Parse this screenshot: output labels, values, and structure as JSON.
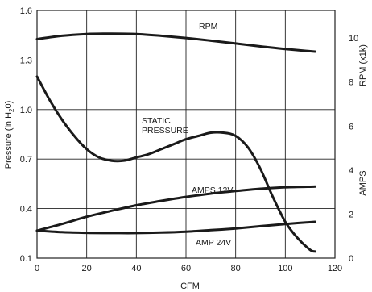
{
  "chart_data": {
    "type": "line",
    "title": "",
    "xlabel": "CFM",
    "ylabel": "Pressure (in H2O)",
    "ylabel_parts": {
      "before": "Pressure (in H",
      "sub": "2",
      "after": "0)"
    },
    "y2label_rpm": "RPM (x1k)",
    "y2label_amps": "AMPS",
    "xlim": [
      0,
      120
    ],
    "ylim": [
      0.1,
      1.6
    ],
    "x_ticks": [
      0,
      20,
      40,
      60,
      80,
      100,
      120
    ],
    "y_ticks": [
      0.1,
      0.4,
      0.7,
      1.0,
      1.3,
      1.6
    ],
    "y_tick_labels": [
      "0.1",
      "0.4",
      "0.7",
      "1.0",
      "1.3",
      "1.6"
    ],
    "y2_ticks": [
      0,
      2,
      4,
      6,
      8,
      10
    ],
    "y2lim": [
      0,
      11.25
    ],
    "grid": true,
    "series": [
      {
        "name": "RPM",
        "axis": "rpm",
        "x": [
          0,
          10,
          20,
          30,
          40,
          50,
          60,
          70,
          80,
          90,
          100,
          112
        ],
        "y": [
          9.95,
          10.1,
          10.18,
          10.2,
          10.18,
          10.1,
          10.0,
          9.88,
          9.75,
          9.62,
          9.5,
          9.38
        ]
      },
      {
        "name": "STATIC PRESSURE",
        "axis": "pressure",
        "x": [
          0,
          5,
          10,
          15,
          20,
          25,
          30,
          35,
          40,
          45,
          50,
          55,
          60,
          65,
          70,
          75,
          80,
          85,
          90,
          95,
          100,
          105,
          110,
          112
        ],
        "y": [
          1.2,
          1.06,
          0.94,
          0.84,
          0.76,
          0.71,
          0.69,
          0.69,
          0.71,
          0.73,
          0.76,
          0.79,
          0.82,
          0.84,
          0.86,
          0.86,
          0.84,
          0.77,
          0.64,
          0.47,
          0.32,
          0.22,
          0.15,
          0.14
        ]
      },
      {
        "name": "AMPS 12V",
        "axis": "amps",
        "x": [
          0,
          10,
          20,
          30,
          40,
          50,
          60,
          70,
          80,
          90,
          100,
          112
        ],
        "y": [
          1.25,
          1.55,
          1.88,
          2.15,
          2.4,
          2.6,
          2.78,
          2.93,
          3.05,
          3.15,
          3.22,
          3.25
        ]
      },
      {
        "name": "AMP 24V",
        "axis": "amps",
        "x": [
          0,
          10,
          20,
          30,
          40,
          50,
          60,
          70,
          80,
          90,
          100,
          112
        ],
        "y": [
          1.25,
          1.18,
          1.15,
          1.14,
          1.14,
          1.16,
          1.2,
          1.27,
          1.35,
          1.45,
          1.55,
          1.65
        ]
      }
    ]
  }
}
